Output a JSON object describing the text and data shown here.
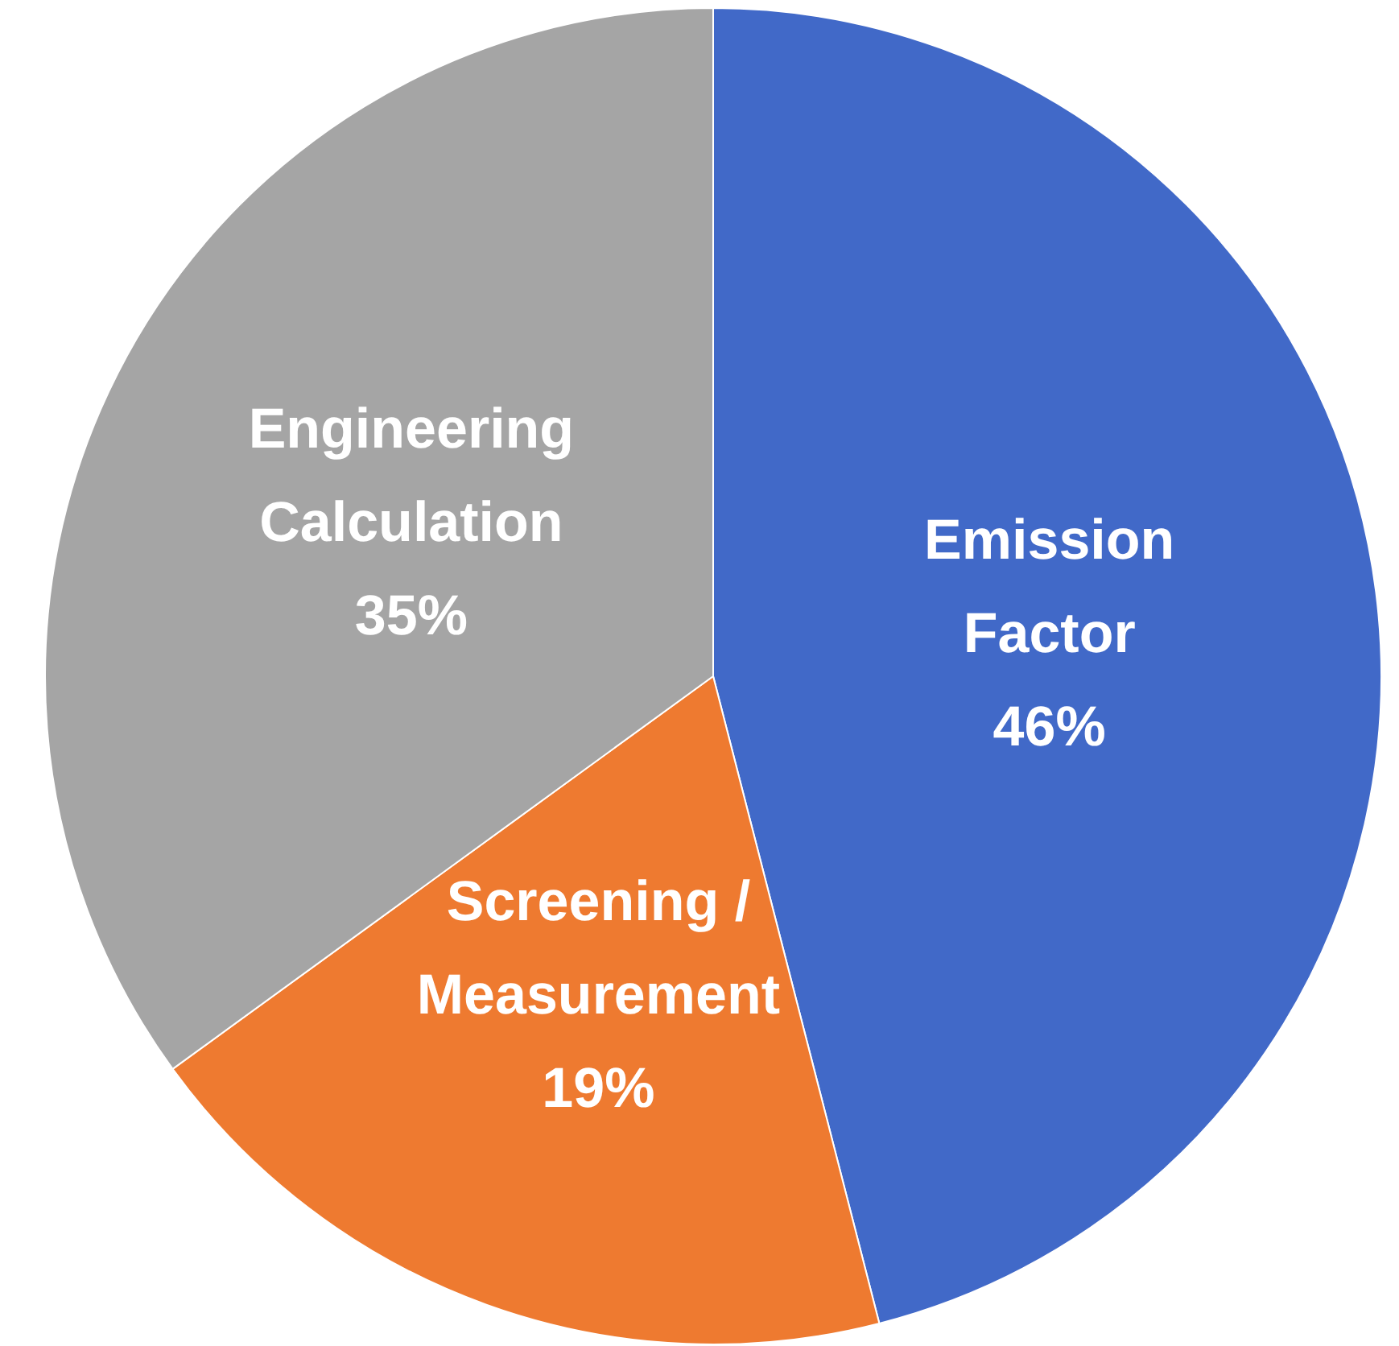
{
  "chart_data": {
    "type": "pie",
    "categories": [
      "Emission Factor",
      "Screening / Measurement",
      "Engineering Calculation"
    ],
    "values": [
      46,
      19,
      35
    ],
    "colors": [
      "#4169c8",
      "#ee7a30",
      "#a5a5a5"
    ],
    "value_labels": [
      "46%",
      "19%",
      "35%"
    ],
    "legend": false
  }
}
